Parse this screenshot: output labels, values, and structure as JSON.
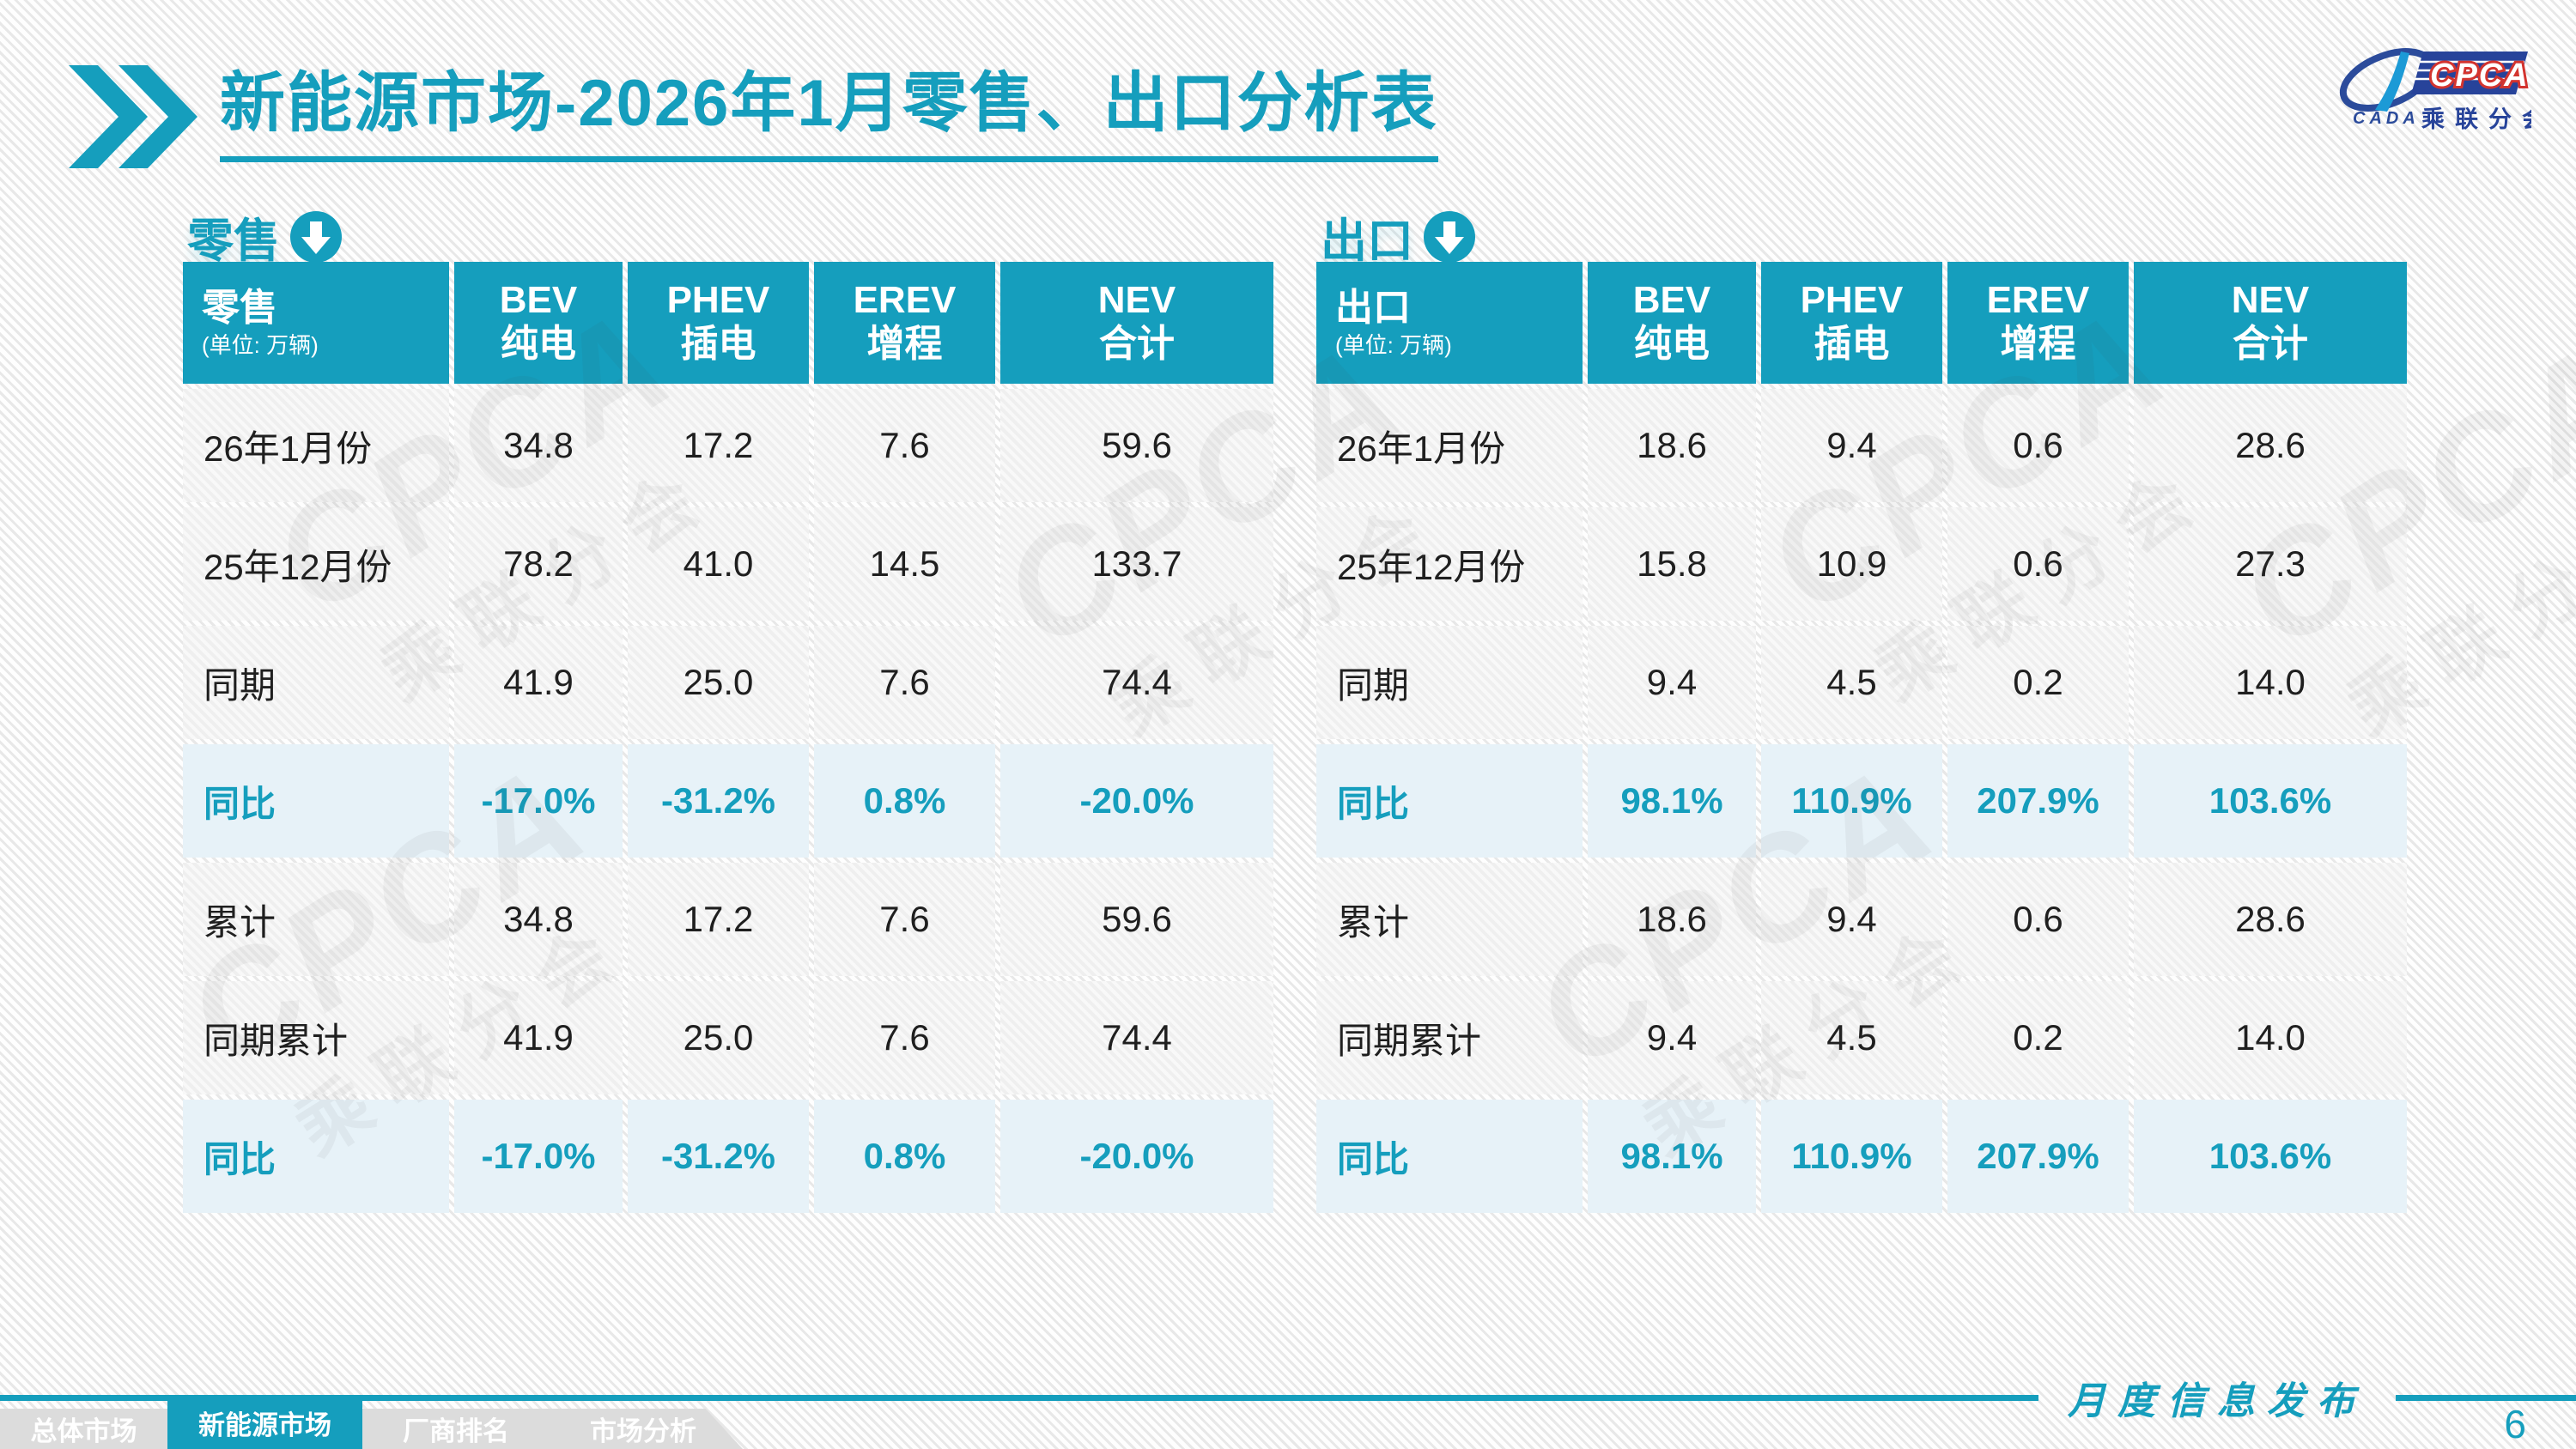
{
  "accent": "#159EBD",
  "title": "新能源市场-2026年1月零售、出口分析表",
  "logo": {
    "cpca": "CPCA",
    "cada": "CADA",
    "branch": "乘联分会"
  },
  "watermark": {
    "line1": "CPCA",
    "line2": "乘联分会"
  },
  "sections": [
    {
      "label": "零售",
      "corner": {
        "title": "零售",
        "unit": "(单位: 万辆)"
      },
      "columns": [
        {
          "l1": "BEV",
          "l2": "纯电"
        },
        {
          "l1": "PHEV",
          "l2": "插电"
        },
        {
          "l1": "EREV",
          "l2": "增程"
        },
        {
          "l1": "NEV",
          "l2": "合计"
        }
      ],
      "rows": [
        {
          "label": "26年1月份",
          "values": [
            "34.8",
            "17.2",
            "7.6",
            "59.6"
          ],
          "highlight": false
        },
        {
          "label": "25年12月份",
          "values": [
            "78.2",
            "41.0",
            "14.5",
            "133.7"
          ],
          "highlight": false
        },
        {
          "label": "同期",
          "values": [
            "41.9",
            "25.0",
            "7.6",
            "74.4"
          ],
          "highlight": false
        },
        {
          "label": "同比",
          "values": [
            "-17.0%",
            "-31.2%",
            "0.8%",
            "-20.0%"
          ],
          "highlight": true
        },
        {
          "label": "累计",
          "values": [
            "34.8",
            "17.2",
            "7.6",
            "59.6"
          ],
          "highlight": false
        },
        {
          "label": "同期累计",
          "values": [
            "41.9",
            "25.0",
            "7.6",
            "74.4"
          ],
          "highlight": false
        },
        {
          "label": "同比",
          "values": [
            "-17.0%",
            "-31.2%",
            "0.8%",
            "-20.0%"
          ],
          "highlight": true
        }
      ]
    },
    {
      "label": "出口",
      "corner": {
        "title": "出口",
        "unit": "(单位: 万辆)"
      },
      "columns": [
        {
          "l1": "BEV",
          "l2": "纯电"
        },
        {
          "l1": "PHEV",
          "l2": "插电"
        },
        {
          "l1": "EREV",
          "l2": "增程"
        },
        {
          "l1": "NEV",
          "l2": "合计"
        }
      ],
      "rows": [
        {
          "label": "26年1月份",
          "values": [
            "18.6",
            "9.4",
            "0.6",
            "28.6"
          ],
          "highlight": false
        },
        {
          "label": "25年12月份",
          "values": [
            "15.8",
            "10.9",
            "0.6",
            "27.3"
          ],
          "highlight": false
        },
        {
          "label": "同期",
          "values": [
            "9.4",
            "4.5",
            "0.2",
            "14.0"
          ],
          "highlight": false
        },
        {
          "label": "同比",
          "values": [
            "98.1%",
            "110.9%",
            "207.9%",
            "103.6%"
          ],
          "highlight": true
        },
        {
          "label": "累计",
          "values": [
            "18.6",
            "9.4",
            "0.6",
            "28.6"
          ],
          "highlight": false
        },
        {
          "label": "同期累计",
          "values": [
            "9.4",
            "4.5",
            "0.2",
            "14.0"
          ],
          "highlight": false
        },
        {
          "label": "同比",
          "values": [
            "98.1%",
            "110.9%",
            "207.9%",
            "103.6%"
          ],
          "highlight": true
        }
      ]
    }
  ],
  "footer": {
    "ribbon": "月度信息发布",
    "page": "6"
  },
  "nav": [
    {
      "label": "总体市场",
      "active": false
    },
    {
      "label": "新能源市场",
      "active": true
    },
    {
      "label": "厂商排名",
      "active": false
    },
    {
      "label": "市场分析",
      "active": false
    }
  ]
}
